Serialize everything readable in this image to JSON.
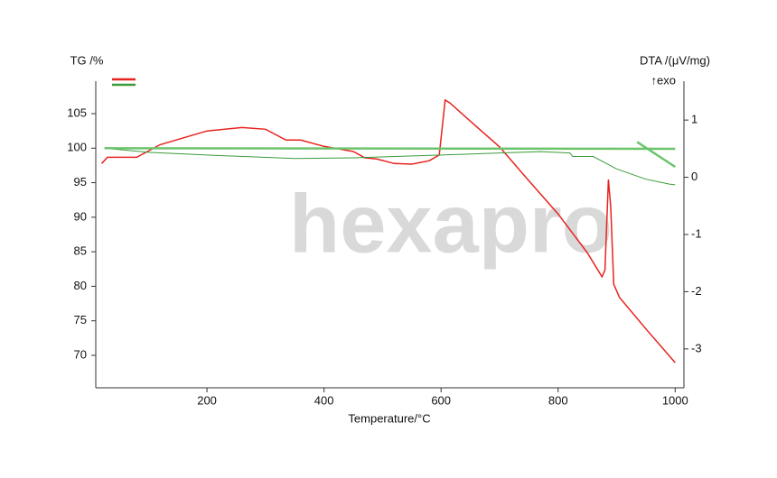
{
  "chart_data": {
    "type": "line",
    "watermark": "hexapro",
    "xlabel": "Temperature/°C",
    "ylabel": "TG /%",
    "y2label": "DTA /(μV/mg)",
    "annotation": "↑exo",
    "xlim": [
      10,
      1015
    ],
    "xticks": [
      200,
      400,
      600,
      800,
      1000
    ],
    "ylim": [
      65.3,
      109.7
    ],
    "yticks": [
      70,
      75,
      80,
      85,
      90,
      95,
      100,
      105
    ],
    "y2lim": [
      -3.68,
      1.68
    ],
    "y2ticks": [
      -3,
      -2,
      -1,
      0,
      1
    ],
    "series": [
      {
        "color": "#e8231f",
        "axis": "y2",
        "width": 1.5,
        "legend": true,
        "x": [
          20,
          30,
          80,
          120,
          200,
          260,
          300,
          335,
          360,
          400,
          450,
          470,
          490,
          520,
          550,
          580,
          597,
          607,
          615,
          660,
          700,
          750,
          800,
          850,
          875,
          880,
          886,
          890,
          895,
          905,
          950,
          1000
        ],
        "values": [
          0.24,
          0.35,
          0.35,
          0.57,
          0.81,
          0.87,
          0.84,
          0.65,
          0.65,
          0.54,
          0.45,
          0.34,
          0.32,
          0.24,
          0.23,
          0.29,
          0.39,
          1.35,
          1.3,
          0.89,
          0.53,
          -0.06,
          -0.64,
          -1.32,
          -1.74,
          -1.62,
          -0.04,
          -0.53,
          -1.87,
          -2.1,
          -2.65,
          -3.24
        ]
      },
      {
        "color": "#3a9a3a",
        "axis": "y",
        "width": 1,
        "legend": true,
        "x": [
          25,
          100,
          200,
          350,
          450,
          600,
          700,
          770,
          820,
          825,
          860,
          900,
          950,
          990,
          1000
        ],
        "values": [
          100,
          99.4,
          99,
          98.5,
          98.6,
          99,
          99.3,
          99.5,
          99.3,
          98.8,
          98.8,
          97,
          95.5,
          94.8,
          94.7
        ]
      },
      {
        "color": "#6cc46c",
        "axis": "y",
        "width": 2.5,
        "legend": false,
        "x": [
          25,
          1000
        ],
        "values": [
          100,
          99.9
        ]
      },
      {
        "color": "#6cc46c",
        "axis": "y",
        "width": 2.5,
        "legend": false,
        "x": [
          935,
          1000
        ],
        "values": [
          100.9,
          97.3
        ]
      }
    ]
  }
}
